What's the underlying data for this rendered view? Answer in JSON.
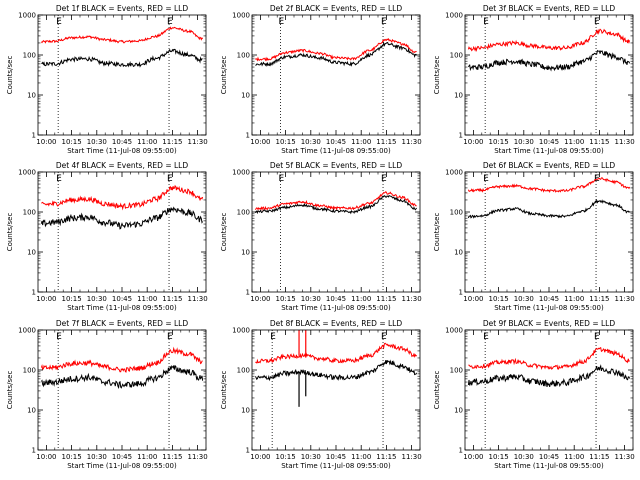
{
  "x_axis_label": "Start Time (11-Jul-08 09:55:00)",
  "y_axis_label": "Counts/sec",
  "colors": {
    "events": "#000000",
    "lld": "#ff0000",
    "axes": "#000000"
  },
  "chart_data": [
    {
      "type": "line",
      "title": "Det 1f BLACK = Events, RED = LLD",
      "xlabel": "Start Time (11-Jul-08 09:55:00)",
      "ylabel": "Counts/sec",
      "y_scale": "log",
      "ylim": [
        1,
        1000
      ],
      "y_ticks": [
        {
          "value": 1,
          "label": "1"
        },
        {
          "value": 10,
          "label": "10"
        },
        {
          "value": 100,
          "label": "100"
        },
        {
          "value": 1000,
          "label": "1000"
        }
      ],
      "x_range": [
        "09:55",
        "11:35"
      ],
      "x_ticks": [
        "10:00",
        "10:15",
        "10:30",
        "10:45",
        "11:00",
        "11:15",
        "11:30"
      ],
      "markers": [
        {
          "time": "10:07",
          "label": "E"
        },
        {
          "time": "11:13",
          "label": "E"
        }
      ],
      "series": [
        {
          "name": "Events",
          "color": "#000000",
          "noise": 0.05,
          "x": [
            "09:55",
            "10:05",
            "10:15",
            "10:25",
            "10:35",
            "10:45",
            "10:55",
            "11:05",
            "11:15",
            "11:25",
            "11:32"
          ],
          "y": [
            58,
            60,
            78,
            80,
            62,
            58,
            58,
            82,
            125,
            100,
            75
          ]
        },
        {
          "name": "LLD",
          "color": "#ff0000",
          "noise": 0.03,
          "x": [
            "09:55",
            "10:05",
            "10:15",
            "10:25",
            "10:35",
            "10:45",
            "10:55",
            "11:05",
            "11:15",
            "11:25",
            "11:32"
          ],
          "y": [
            210,
            220,
            270,
            285,
            240,
            215,
            225,
            290,
            480,
            390,
            260
          ]
        }
      ]
    },
    {
      "type": "line",
      "title": "Det 2f BLACK = Events, RED = LLD",
      "xlabel": "Start Time (11-Jul-08 09:55:00)",
      "ylabel": "Counts/sec",
      "y_scale": "log",
      "ylim": [
        1,
        1000
      ],
      "y_ticks": [
        {
          "value": 1,
          "label": "1"
        },
        {
          "value": 10,
          "label": "10"
        },
        {
          "value": 100,
          "label": "100"
        },
        {
          "value": 1000,
          "label": "1000"
        }
      ],
      "x_range": [
        "09:55",
        "11:35"
      ],
      "x_ticks": [
        "10:00",
        "10:15",
        "10:30",
        "10:45",
        "11:00",
        "11:15",
        "11:30"
      ],
      "markers": [
        {
          "time": "10:12",
          "label": "E"
        },
        {
          "time": "11:13",
          "label": "E"
        }
      ],
      "series": [
        {
          "name": "Events",
          "color": "#000000",
          "noise": 0.04,
          "x": [
            "09:55",
            "10:05",
            "10:15",
            "10:25",
            "10:35",
            "10:45",
            "10:55",
            "11:05",
            "11:15",
            "11:25",
            "11:32"
          ],
          "y": [
            58,
            60,
            90,
            100,
            85,
            65,
            60,
            100,
            190,
            150,
            100
          ]
        },
        {
          "name": "LLD",
          "color": "#ff0000",
          "noise": 0.03,
          "x": [
            "09:55",
            "10:05",
            "10:15",
            "10:25",
            "10:35",
            "10:45",
            "10:55",
            "11:05",
            "11:15",
            "11:25",
            "11:32"
          ],
          "y": [
            78,
            80,
            115,
            130,
            110,
            85,
            80,
            130,
            240,
            190,
            120
          ]
        }
      ]
    },
    {
      "type": "line",
      "title": "Det 3f BLACK = Events, RED = LLD",
      "xlabel": "Start Time (11-Jul-08 09:55:00)",
      "ylabel": "Counts/sec",
      "y_scale": "log",
      "ylim": [
        1,
        1000
      ],
      "y_ticks": [
        {
          "value": 1,
          "label": "1"
        },
        {
          "value": 10,
          "label": "10"
        },
        {
          "value": 100,
          "label": "100"
        },
        {
          "value": 1000,
          "label": "1000"
        }
      ],
      "x_range": [
        "09:55",
        "11:35"
      ],
      "x_ticks": [
        "10:00",
        "10:15",
        "10:30",
        "10:45",
        "11:00",
        "11:15",
        "11:30"
      ],
      "markers": [
        {
          "time": "10:07",
          "label": "E"
        },
        {
          "time": "11:13",
          "label": "E"
        }
      ],
      "series": [
        {
          "name": "Events",
          "color": "#000000",
          "noise": 0.07,
          "x": [
            "09:55",
            "10:05",
            "10:15",
            "10:25",
            "10:35",
            "10:45",
            "10:55",
            "11:05",
            "11:15",
            "11:25",
            "11:32"
          ],
          "y": [
            48,
            50,
            65,
            70,
            58,
            48,
            50,
            68,
            115,
            90,
            65
          ]
        },
        {
          "name": "LLD",
          "color": "#ff0000",
          "noise": 0.05,
          "x": [
            "09:55",
            "10:05",
            "10:15",
            "10:25",
            "10:35",
            "10:45",
            "10:55",
            "11:05",
            "11:15",
            "11:25",
            "11:32"
          ],
          "y": [
            140,
            150,
            185,
            200,
            170,
            150,
            150,
            200,
            400,
            330,
            220
          ]
        }
      ]
    },
    {
      "type": "line",
      "title": "Det 4f BLACK = Events, RED = LLD",
      "xlabel": "Start Time (11-Jul-08 09:55:00)",
      "ylabel": "Counts/sec",
      "y_scale": "log",
      "ylim": [
        1,
        1000
      ],
      "y_ticks": [
        {
          "value": 1,
          "label": "1"
        },
        {
          "value": 10,
          "label": "10"
        },
        {
          "value": 100,
          "label": "100"
        },
        {
          "value": 1000,
          "label": "1000"
        }
      ],
      "x_range": [
        "09:55",
        "11:35"
      ],
      "x_ticks": [
        "10:00",
        "10:15",
        "10:30",
        "10:45",
        "11:00",
        "11:15",
        "11:30"
      ],
      "markers": [
        {
          "time": "10:07",
          "label": "E"
        },
        {
          "time": "11:13",
          "label": "E"
        }
      ],
      "series": [
        {
          "name": "Events",
          "color": "#000000",
          "noise": 0.08,
          "x": [
            "09:55",
            "10:05",
            "10:15",
            "10:25",
            "10:35",
            "10:45",
            "10:55",
            "11:05",
            "11:15",
            "11:25",
            "11:32"
          ],
          "y": [
            50,
            55,
            70,
            75,
            55,
            45,
            50,
            70,
            120,
            95,
            65
          ]
        },
        {
          "name": "LLD",
          "color": "#ff0000",
          "noise": 0.06,
          "x": [
            "09:55",
            "10:05",
            "10:15",
            "10:25",
            "10:35",
            "10:45",
            "10:55",
            "11:05",
            "11:15",
            "11:25",
            "11:32"
          ],
          "y": [
            150,
            160,
            200,
            210,
            160,
            140,
            150,
            210,
            400,
            330,
            210
          ]
        }
      ]
    },
    {
      "type": "line",
      "title": "Det 5f BLACK = Events, RED = LLD",
      "xlabel": "Start Time (11-Jul-08 09:55:00)",
      "ylabel": "Counts/sec",
      "y_scale": "log",
      "ylim": [
        1,
        1000
      ],
      "y_ticks": [
        {
          "value": 1,
          "label": "1"
        },
        {
          "value": 10,
          "label": "10"
        },
        {
          "value": 100,
          "label": "100"
        },
        {
          "value": 1000,
          "label": "1000"
        }
      ],
      "x_range": [
        "09:55",
        "11:35"
      ],
      "x_ticks": [
        "10:00",
        "10:15",
        "10:30",
        "10:45",
        "11:00",
        "11:15",
        "11:30"
      ],
      "markers": [
        {
          "time": "10:12",
          "label": "E"
        },
        {
          "time": "11:13",
          "label": "E"
        }
      ],
      "series": [
        {
          "name": "Events",
          "color": "#000000",
          "noise": 0.03,
          "x": [
            "09:55",
            "10:05",
            "10:15",
            "10:25",
            "10:35",
            "10:45",
            "10:55",
            "11:05",
            "11:15",
            "11:25",
            "11:32"
          ],
          "y": [
            100,
            105,
            130,
            150,
            120,
            105,
            100,
            135,
            250,
            190,
            120
          ]
        },
        {
          "name": "LLD",
          "color": "#ff0000",
          "noise": 0.03,
          "x": [
            "09:55",
            "10:05",
            "10:15",
            "10:25",
            "10:35",
            "10:45",
            "10:55",
            "11:05",
            "11:15",
            "11:25",
            "11:32"
          ],
          "y": [
            120,
            125,
            160,
            180,
            145,
            125,
            125,
            165,
            300,
            230,
            150
          ]
        }
      ]
    },
    {
      "type": "line",
      "title": "Det 6f BLACK = Events, RED = LLD",
      "xlabel": "Start Time (11-Jul-08 09:55:00)",
      "ylabel": "Counts/sec",
      "y_scale": "log",
      "ylim": [
        1,
        1000
      ],
      "y_ticks": [
        {
          "value": 1,
          "label": "1"
        },
        {
          "value": 10,
          "label": "10"
        },
        {
          "value": 100,
          "label": "100"
        },
        {
          "value": 1000,
          "label": "1000"
        }
      ],
      "x_range": [
        "09:55",
        "11:35"
      ],
      "x_ticks": [
        "10:00",
        "10:15",
        "10:30",
        "10:45",
        "11:00",
        "11:15",
        "11:30"
      ],
      "markers": [
        {
          "time": "10:07",
          "label": "E"
        },
        {
          "time": "11:13",
          "label": "E"
        }
      ],
      "series": [
        {
          "name": "Events",
          "color": "#000000",
          "noise": 0.03,
          "x": [
            "09:55",
            "10:05",
            "10:15",
            "10:25",
            "10:35",
            "10:45",
            "10:55",
            "11:05",
            "11:15",
            "11:25",
            "11:32"
          ],
          "y": [
            75,
            80,
            110,
            120,
            90,
            80,
            78,
            105,
            190,
            150,
            100
          ]
        },
        {
          "name": "LLD",
          "color": "#ff0000",
          "noise": 0.03,
          "x": [
            "09:55",
            "10:05",
            "10:15",
            "10:25",
            "10:35",
            "10:45",
            "10:55",
            "11:05",
            "11:15",
            "11:25",
            "11:32"
          ],
          "y": [
            340,
            350,
            430,
            450,
            380,
            340,
            340,
            430,
            680,
            560,
            400
          ]
        }
      ]
    },
    {
      "type": "line",
      "title": "Det 7f BLACK = Events, RED = LLD",
      "xlabel": "Start Time (11-Jul-08 09:55:00)",
      "ylabel": "Counts/sec",
      "y_scale": "log",
      "ylim": [
        1,
        1000
      ],
      "y_ticks": [
        {
          "value": 1,
          "label": "1"
        },
        {
          "value": 10,
          "label": "10"
        },
        {
          "value": 100,
          "label": "100"
        },
        {
          "value": 1000,
          "label": "1000"
        }
      ],
      "x_range": [
        "09:55",
        "11:35"
      ],
      "x_ticks": [
        "10:00",
        "10:15",
        "10:30",
        "10:45",
        "11:00",
        "11:15",
        "11:30"
      ],
      "markers": [
        {
          "time": "10:07",
          "label": "E"
        },
        {
          "time": "11:13",
          "label": "E"
        }
      ],
      "series": [
        {
          "name": "Events",
          "color": "#000000",
          "noise": 0.08,
          "x": [
            "09:55",
            "10:05",
            "10:15",
            "10:25",
            "10:35",
            "10:45",
            "10:55",
            "11:05",
            "11:15",
            "11:25",
            "11:32"
          ],
          "y": [
            45,
            50,
            60,
            65,
            50,
            42,
            45,
            62,
            110,
            90,
            62
          ]
        },
        {
          "name": "LLD",
          "color": "#ff0000",
          "noise": 0.06,
          "x": [
            "09:55",
            "10:05",
            "10:15",
            "10:25",
            "10:35",
            "10:45",
            "10:55",
            "11:05",
            "11:15",
            "11:25",
            "11:32"
          ],
          "y": [
            110,
            115,
            145,
            150,
            120,
            100,
            110,
            150,
            300,
            250,
            165
          ]
        }
      ]
    },
    {
      "type": "line",
      "title": "Det 8f BLACK = Events, RED = LLD",
      "xlabel": "Start Time (11-Jul-08 09:55:00)",
      "ylabel": "Counts/sec",
      "y_scale": "log",
      "ylim": [
        1,
        1000
      ],
      "y_ticks": [
        {
          "value": 1,
          "label": "1"
        },
        {
          "value": 10,
          "label": "10"
        },
        {
          "value": 100,
          "label": "100"
        },
        {
          "value": 1000,
          "label": "1000"
        }
      ],
      "x_range": [
        "09:55",
        "11:35"
      ],
      "x_ticks": [
        "10:00",
        "10:15",
        "10:30",
        "10:45",
        "11:00",
        "11:15",
        "11:30"
      ],
      "markers": [
        {
          "time": "10:07",
          "label": "E"
        },
        {
          "time": "11:13",
          "label": "E"
        }
      ],
      "spikes": [
        {
          "series": "LLD",
          "time": "10:23",
          "value": 1000
        },
        {
          "series": "LLD",
          "time": "10:27",
          "value": 1000
        },
        {
          "series": "Events",
          "time": "10:23",
          "value": 12
        },
        {
          "series": "Events",
          "time": "10:27",
          "value": 22
        }
      ],
      "series": [
        {
          "name": "Events",
          "color": "#000000",
          "noise": 0.06,
          "x": [
            "09:55",
            "10:05",
            "10:15",
            "10:25",
            "10:35",
            "10:45",
            "10:55",
            "11:05",
            "11:15",
            "11:25",
            "11:32"
          ],
          "y": [
            62,
            65,
            82,
            90,
            75,
            65,
            65,
            88,
            160,
            125,
            85
          ]
        },
        {
          "name": "LLD",
          "color": "#ff0000",
          "noise": 0.05,
          "x": [
            "09:55",
            "10:05",
            "10:15",
            "10:25",
            "10:35",
            "10:45",
            "10:55",
            "11:05",
            "11:15",
            "11:25",
            "11:32"
          ],
          "y": [
            160,
            170,
            215,
            230,
            195,
            170,
            170,
            230,
            420,
            340,
            230
          ]
        }
      ]
    },
    {
      "type": "line",
      "title": "Det 9f BLACK = Events, RED = LLD",
      "xlabel": "Start Time (11-Jul-08 09:55:00)",
      "ylabel": "Counts/sec",
      "y_scale": "log",
      "ylim": [
        1,
        1000
      ],
      "y_ticks": [
        {
          "value": 1,
          "label": "1"
        },
        {
          "value": 10,
          "label": "10"
        },
        {
          "value": 100,
          "label": "100"
        },
        {
          "value": 1000,
          "label": "1000"
        }
      ],
      "x_range": [
        "09:55",
        "11:35"
      ],
      "x_ticks": [
        "10:00",
        "10:15",
        "10:30",
        "10:45",
        "11:00",
        "11:15",
        "11:30"
      ],
      "markers": [
        {
          "time": "10:07",
          "label": "E"
        },
        {
          "time": "11:13",
          "label": "E"
        }
      ],
      "series": [
        {
          "name": "Events",
          "color": "#000000",
          "noise": 0.08,
          "x": [
            "09:55",
            "10:05",
            "10:15",
            "10:25",
            "10:35",
            "10:45",
            "10:55",
            "11:05",
            "11:15",
            "11:25",
            "11:32"
          ],
          "y": [
            48,
            52,
            62,
            68,
            52,
            45,
            48,
            65,
            110,
            90,
            62
          ]
        },
        {
          "name": "LLD",
          "color": "#ff0000",
          "noise": 0.05,
          "x": [
            "09:55",
            "10:05",
            "10:15",
            "10:25",
            "10:35",
            "10:45",
            "10:55",
            "11:05",
            "11:15",
            "11:25",
            "11:32"
          ],
          "y": [
            120,
            125,
            155,
            165,
            130,
            115,
            120,
            160,
            330,
            260,
            175
          ]
        }
      ]
    }
  ]
}
